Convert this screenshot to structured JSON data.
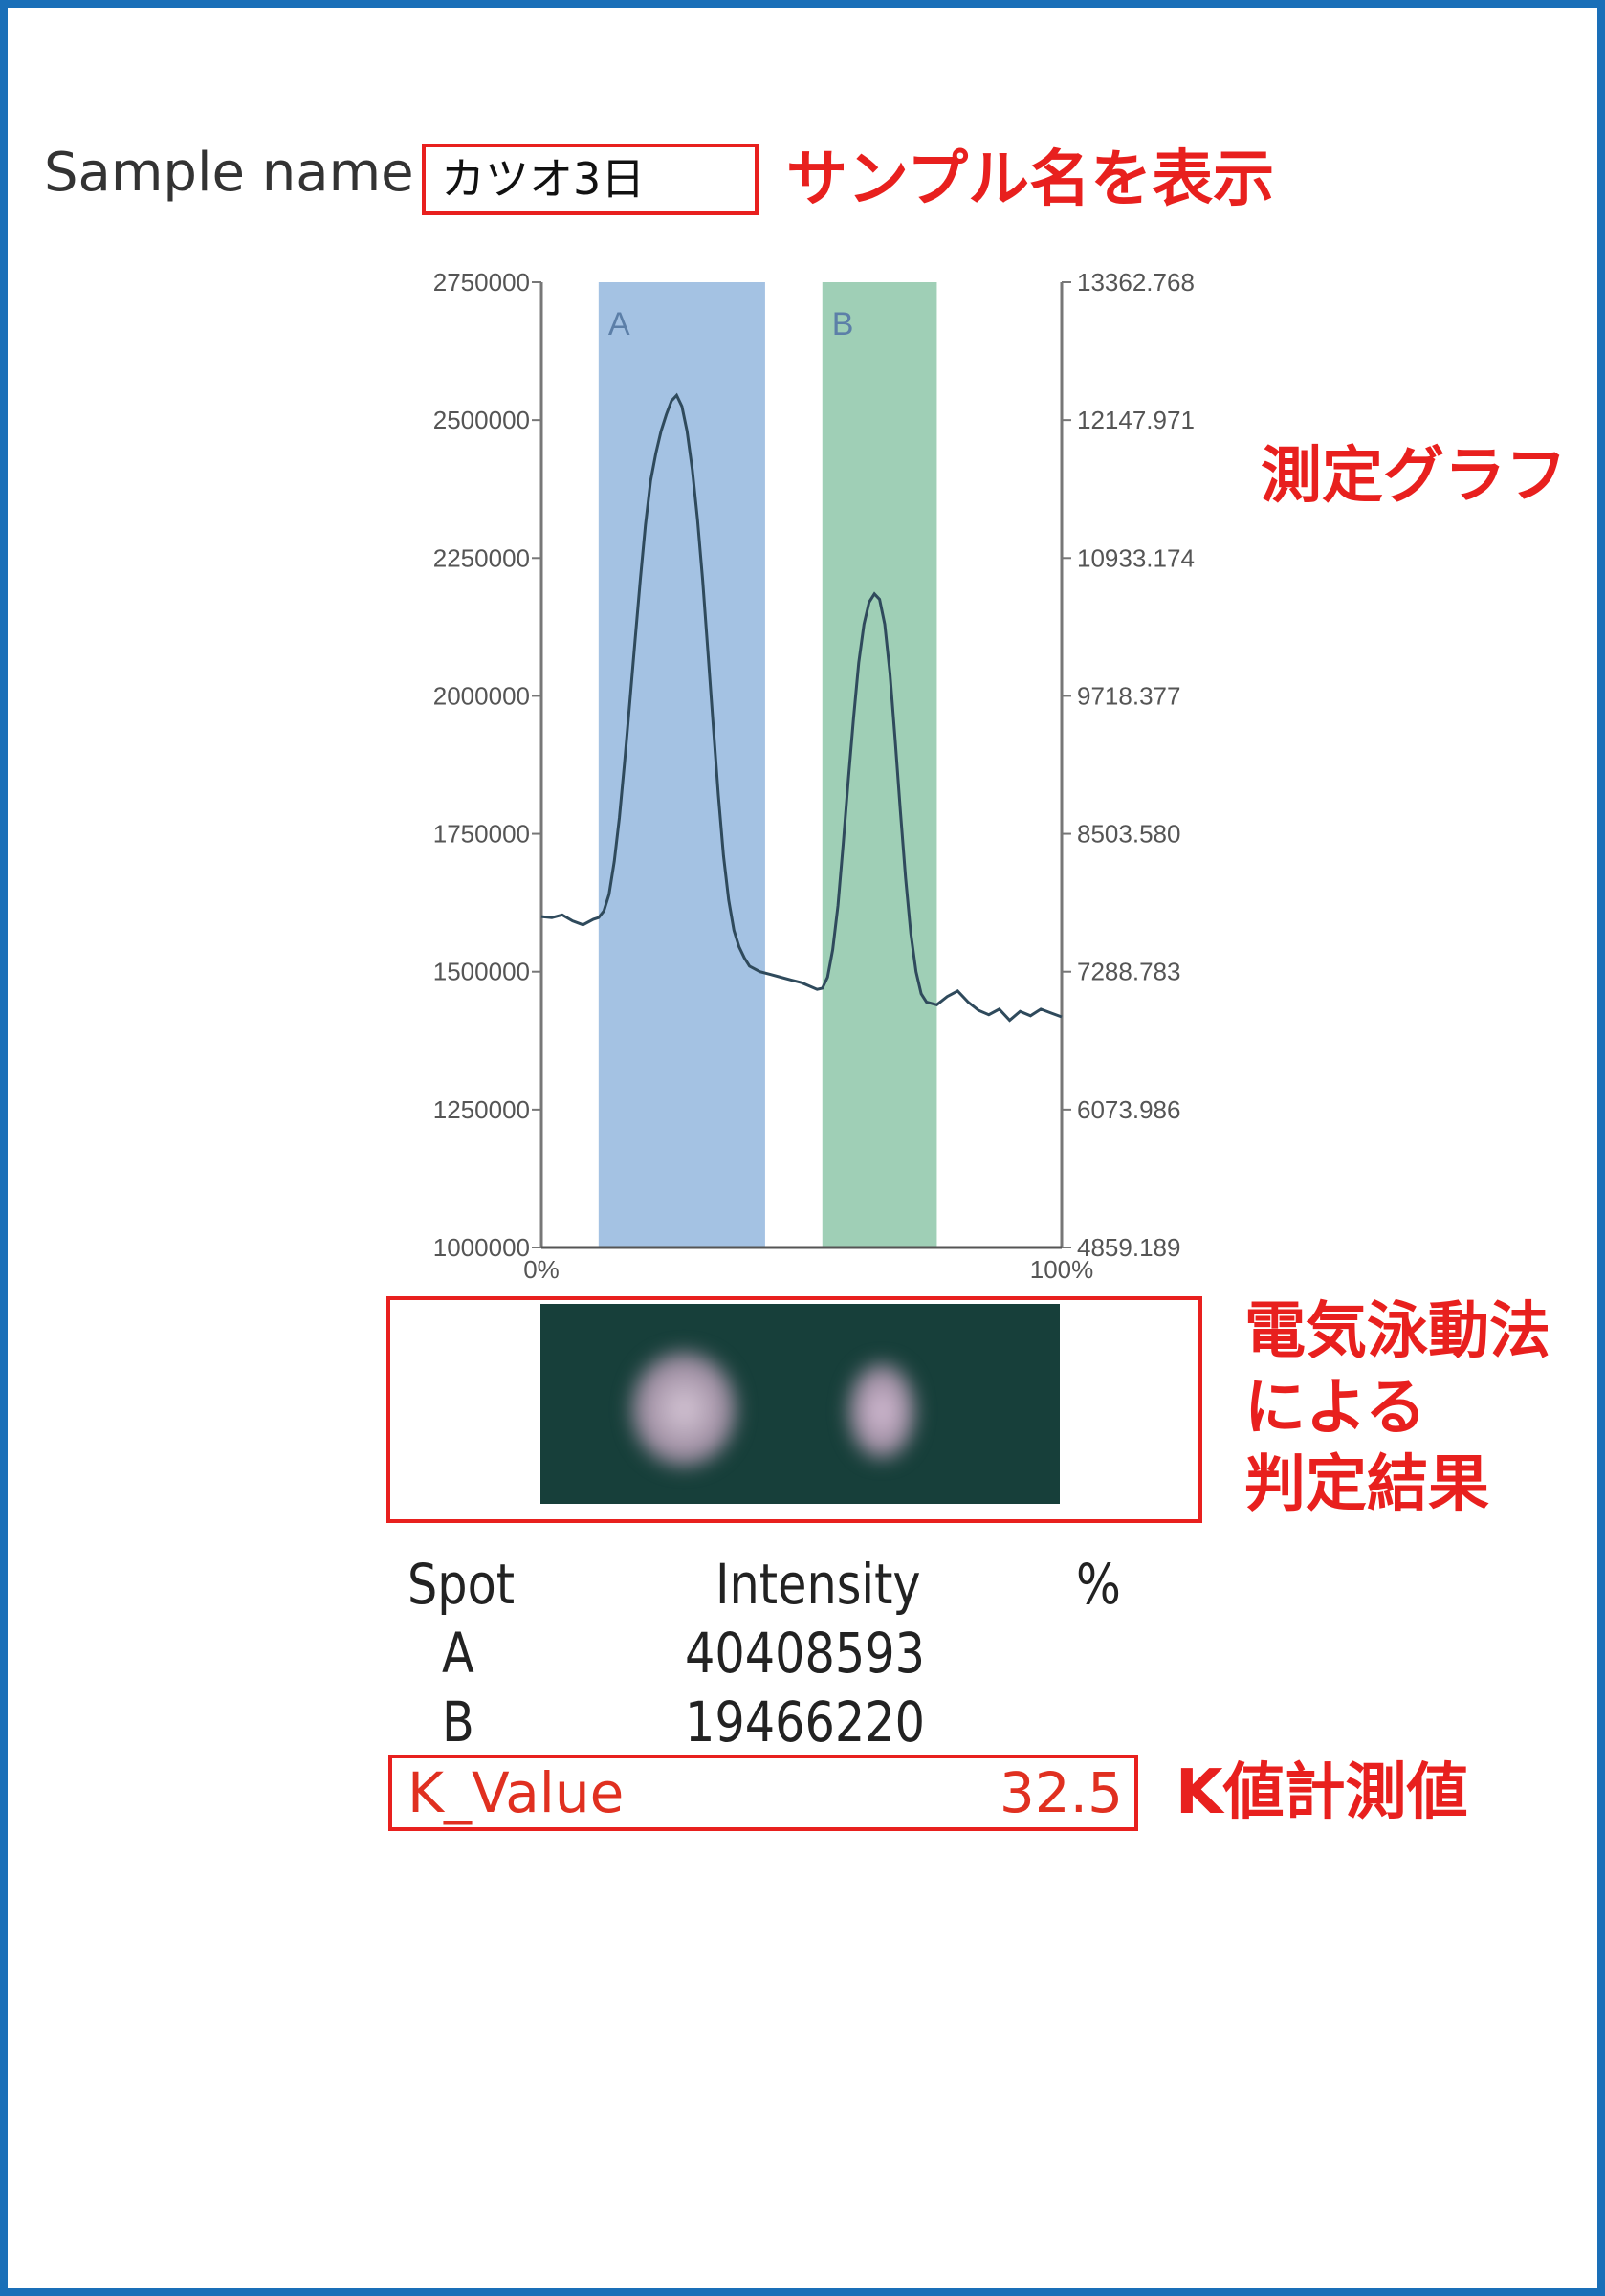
{
  "header": {
    "sample_label": "Sample name :",
    "sample_value": "カツオ3日",
    "annotation": "サンプル名を表示"
  },
  "graph_annotation": "測定グラフ",
  "gel_annotation": [
    "電気泳動法",
    "による",
    "判定結果"
  ],
  "table": {
    "headers": [
      "Spot",
      "Intensity",
      "%"
    ],
    "rows": [
      {
        "spot": "A",
        "intensity": "40408593"
      },
      {
        "spot": "B",
        "intensity": "19466220"
      }
    ],
    "k_label": "K_Value",
    "k_value": "32.5"
  },
  "k_annotation": "K値計測値",
  "colors": {
    "accent_red": "#e8201e",
    "frame_blue": "#1a6fb8",
    "band_a": "#a4c2e3",
    "band_b": "#9fcfb6",
    "gel_bg": "#173f3a"
  },
  "chart_data": {
    "type": "line",
    "xlim": [
      0,
      100
    ],
    "ylim": [
      1000000,
      2750000
    ],
    "y2lim": [
      4859.189,
      13362.768
    ],
    "x_tick_labels": [
      "0%",
      "100%"
    ],
    "y_ticks": [
      1000000,
      1250000,
      1500000,
      1750000,
      2000000,
      2250000,
      2500000,
      2750000
    ],
    "y_tick_labels": [
      "1000000",
      "1250000",
      "1500000",
      "1750000",
      "2000000",
      "2250000",
      "2500000",
      "2750000"
    ],
    "y2_tick_labels": [
      "4859.189",
      "6073.986",
      "7288.783",
      "8503.580",
      "9718.377",
      "10933.174",
      "12147.971",
      "13362.768"
    ],
    "bands": [
      {
        "label": "A",
        "from": 11,
        "to": 43,
        "color": "#a4c2e3"
      },
      {
        "label": "B",
        "from": 54,
        "to": 76,
        "color": "#9fcfb6"
      }
    ],
    "grid": false,
    "x": [
      0,
      2,
      4,
      6,
      8,
      10,
      11,
      12,
      13,
      14,
      15,
      16,
      17,
      18,
      19,
      20,
      21,
      22,
      23,
      24,
      25,
      26,
      27,
      28,
      29,
      30,
      31,
      32,
      33,
      34,
      35,
      36,
      37,
      38,
      39,
      40,
      42,
      44,
      46,
      48,
      50,
      52,
      53,
      54,
      55,
      56,
      57,
      58,
      59,
      60,
      61,
      62,
      63,
      64,
      65,
      66,
      67,
      68,
      69,
      70,
      71,
      72,
      73,
      74,
      76,
      78,
      80,
      82,
      84,
      86,
      88,
      90,
      92,
      94,
      96,
      98,
      100
    ],
    "y": [
      1600000,
      1598000,
      1603000,
      1592000,
      1585000,
      1595000,
      1598000,
      1610000,
      1640000,
      1700000,
      1780000,
      1880000,
      1990000,
      2100000,
      2210000,
      2310000,
      2390000,
      2440000,
      2480000,
      2510000,
      2535000,
      2545000,
      2525000,
      2480000,
      2410000,
      2320000,
      2210000,
      2080000,
      1950000,
      1820000,
      1710000,
      1630000,
      1575000,
      1545000,
      1525000,
      1510000,
      1500000,
      1495000,
      1490000,
      1485000,
      1480000,
      1472000,
      1468000,
      1470000,
      1490000,
      1540000,
      1620000,
      1730000,
      1850000,
      1960000,
      2060000,
      2130000,
      2170000,
      2185000,
      2175000,
      2130000,
      2040000,
      1920000,
      1790000,
      1670000,
      1570000,
      1500000,
      1460000,
      1445000,
      1440000,
      1455000,
      1465000,
      1445000,
      1430000,
      1422000,
      1432000,
      1412000,
      1428000,
      1420000,
      1432000,
      1425000,
      1418000
    ]
  }
}
